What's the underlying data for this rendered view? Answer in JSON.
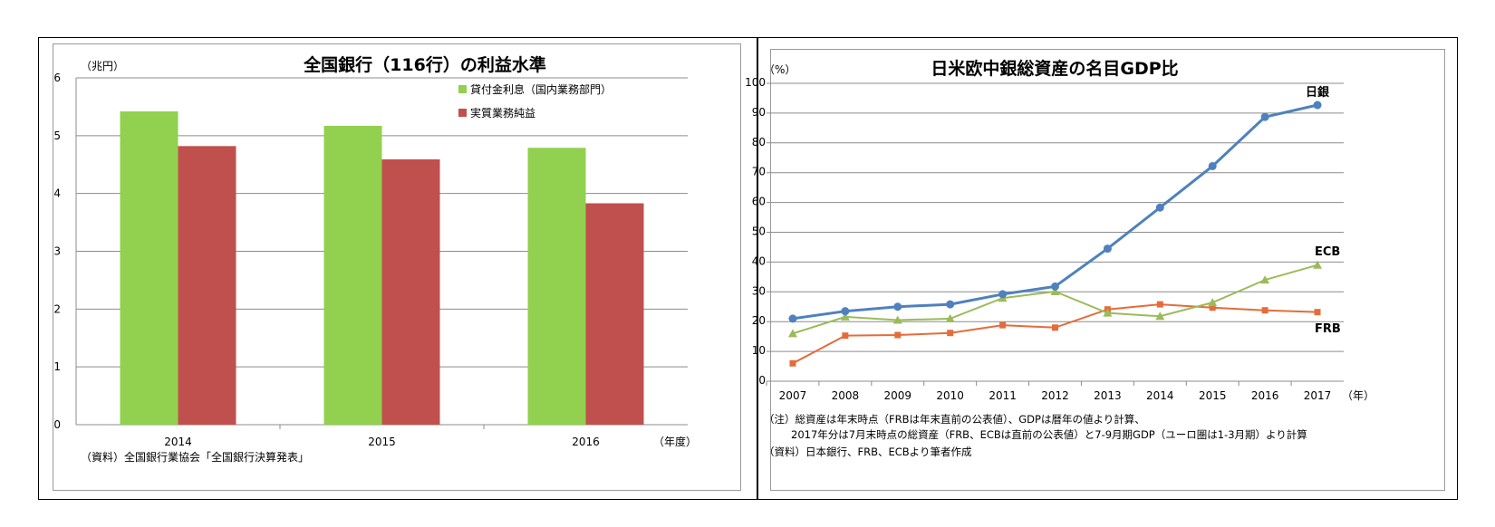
{
  "chart_data": [
    {
      "type": "bar",
      "title": "全国銀行（116行）の利益水準",
      "ylabel": "（兆円）",
      "xlabel": "（年度）",
      "categories": [
        "2014",
        "2015",
        "2016"
      ],
      "series": [
        {
          "name": "貸付金利息（国内業務部門）",
          "values": [
            5.42,
            5.17,
            4.79
          ],
          "color": "#92d050"
        },
        {
          "name": "実質業務純益",
          "values": [
            4.82,
            4.59,
            3.83
          ],
          "color": "#c0504d"
        }
      ],
      "ylim": [
        0,
        6
      ],
      "yticks": [
        0,
        1,
        2,
        3,
        4,
        5,
        6
      ],
      "grid": true,
      "legend": "top-right",
      "source": "（資料）全国銀行業協会「全国銀行決算発表」"
    },
    {
      "type": "line",
      "title": "日米欧中銀総資産の名目GDP比",
      "ylabel": "（%）",
      "xlabel": "（年）",
      "x": [
        "2007",
        "2008",
        "2009",
        "2010",
        "2011",
        "2012",
        "2013",
        "2014",
        "2015",
        "2016",
        "2017"
      ],
      "series": [
        {
          "name": "日銀",
          "values": [
            21,
            23.5,
            25,
            25.8,
            29.2,
            31.8,
            44.5,
            58.3,
            72.2,
            88.7,
            92.7
          ],
          "color": "#4f81bd",
          "marker": "circle"
        },
        {
          "name": "ECB",
          "values": [
            16,
            21.6,
            20.5,
            21,
            27.9,
            30.1,
            22.9,
            21.8,
            26.4,
            34,
            39
          ],
          "color": "#9bbb59",
          "marker": "triangle"
        },
        {
          "name": "FRB",
          "values": [
            6,
            15.3,
            15.5,
            16.2,
            18.8,
            18,
            24.1,
            25.8,
            24.7,
            23.8,
            23.2
          ],
          "color": "#e46c3a",
          "marker": "square"
        }
      ],
      "ylim": [
        0,
        100
      ],
      "yticks": [
        0,
        10,
        20,
        30,
        40,
        50,
        60,
        70,
        80,
        90,
        100
      ],
      "grid": true,
      "notes": [
        "（注）総資産は年末時点（FRBは年末直前の公表値）、GDPは暦年の値より計算、",
        "2017年分は7月末時点の総資産（FRB、ECBは直前の公表値）と7-9月期GDP（ユーロ圏は1-3月期）より計算",
        "（資料）日本銀行、FRB、ECBより筆者作成"
      ]
    }
  ]
}
